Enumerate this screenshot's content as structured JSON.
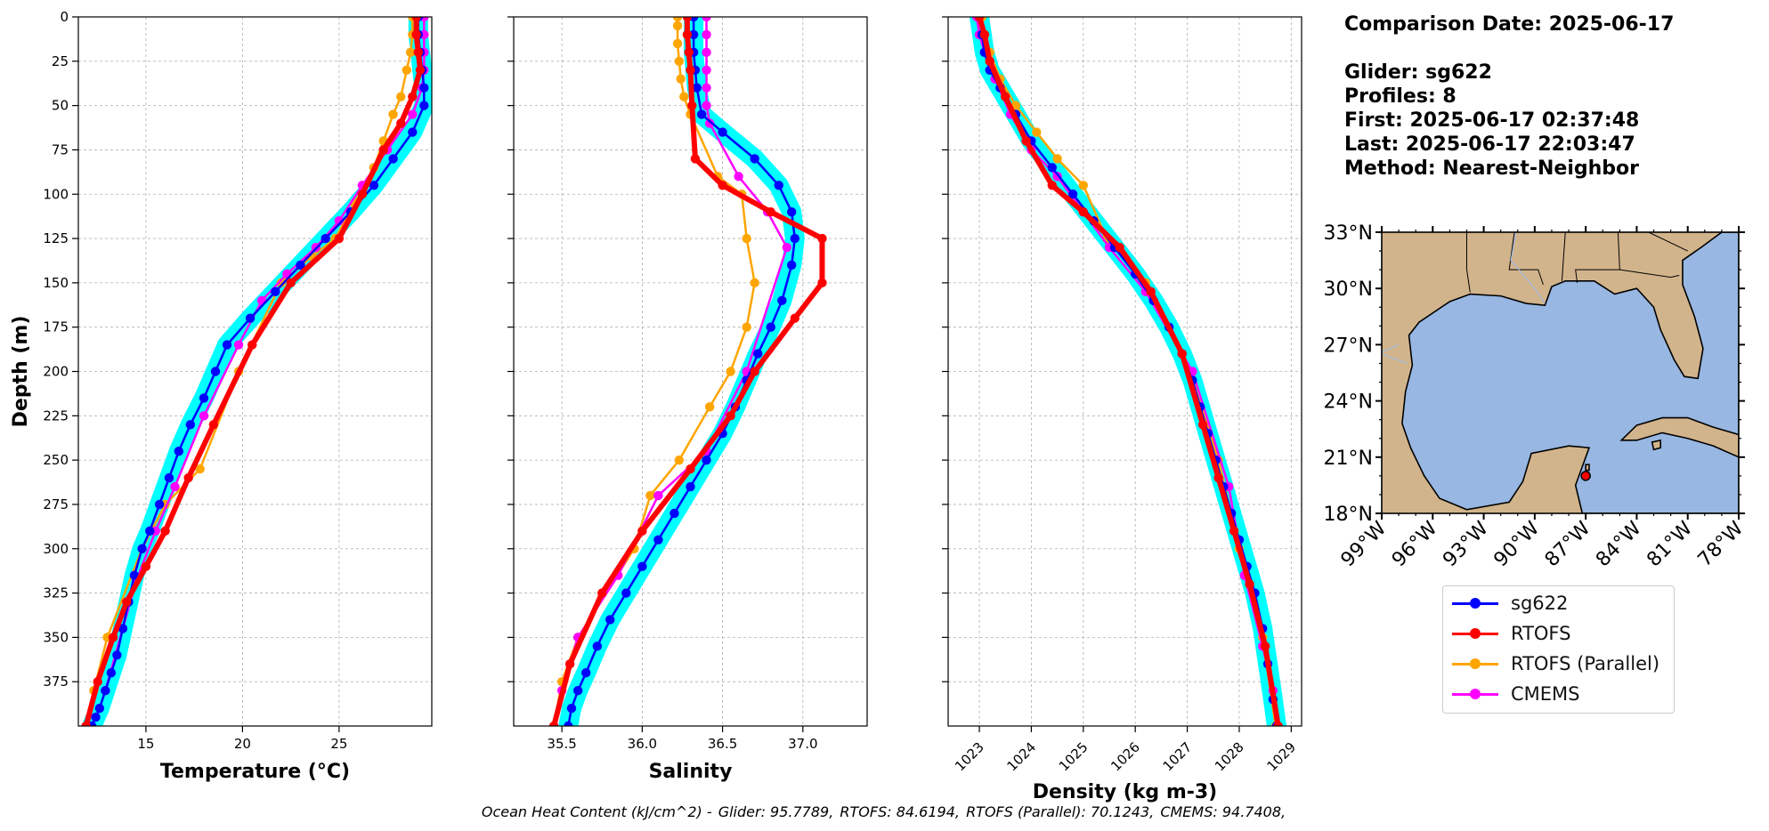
{
  "info": {
    "comparison_date": "Comparison Date: 2025-06-17",
    "glider": "Glider: sg622",
    "profiles": "Profiles: 8",
    "first": "First: 2025-06-17 02:37:48",
    "last": "Last: 2025-06-17 22:03:47",
    "method": "Method: Nearest-Neighbor"
  },
  "footer": {
    "ohc_label": "Ocean Heat Content (kJ/cm^2) -",
    "glider": "Glider: 95.7789,",
    "rtofs": "RTOFS: 84.6194,",
    "rtofs_parallel": "RTOFS (Parallel): 70.1243,",
    "cmems": "CMEMS: 94.7408,"
  },
  "legend": [
    {
      "name": "sg622",
      "color": "#0000ff"
    },
    {
      "name": "RTOFS",
      "color": "#ff0000"
    },
    {
      "name": "RTOFS (Parallel)",
      "color": "#ffa500"
    },
    {
      "name": "CMEMS",
      "color": "#ff00ff"
    }
  ],
  "colors": {
    "glider_band": "#00ffff",
    "land": "#d2b48c",
    "water": "#98b7e2",
    "glider_location": "#ff0000"
  },
  "chart_data": [
    {
      "type": "line",
      "xlabel": "Temperature (°C)",
      "ylabel": "Depth (m)",
      "xlim": [
        11.5,
        29.8
      ],
      "ylim": [
        400,
        0
      ],
      "xticks": [
        15,
        20,
        25
      ],
      "yticks": [
        0,
        25,
        50,
        75,
        100,
        125,
        150,
        175,
        200,
        225,
        250,
        275,
        300,
        325,
        350,
        375
      ],
      "grid": true,
      "series": [
        {
          "name": "sg622",
          "x": [
            29.1,
            29.1,
            29.2,
            29.3,
            29.4,
            29.4,
            28.8,
            27.8,
            26.8,
            25.6,
            24.3,
            23.0,
            21.7,
            20.4,
            19.2,
            18.6,
            18.0,
            17.3,
            16.7,
            16.2,
            15.7,
            15.2,
            14.8,
            14.4,
            14.1,
            13.8,
            13.5,
            13.2,
            12.9,
            12.6,
            12.4,
            12.2
          ],
          "y": [
            0,
            10,
            20,
            30,
            40,
            50,
            65,
            80,
            95,
            110,
            125,
            140,
            155,
            170,
            185,
            200,
            215,
            230,
            245,
            260,
            275,
            290,
            300,
            315,
            330,
            345,
            360,
            370,
            380,
            390,
            395,
            400
          ]
        },
        {
          "name": "RTOFS",
          "x": [
            29.0,
            29.0,
            29.1,
            29.2,
            28.8,
            28.2,
            27.3,
            26.2,
            25.0,
            22.5,
            20.5,
            18.5,
            17.2,
            16.0,
            15.0,
            14.0,
            13.3,
            12.5,
            11.9
          ],
          "y": [
            0,
            10,
            20,
            30,
            45,
            60,
            75,
            100,
            125,
            150,
            185,
            230,
            260,
            290,
            310,
            330,
            350,
            375,
            400
          ]
        },
        {
          "name": "RTOFS (Parallel)",
          "x": [
            28.8,
            28.8,
            28.7,
            28.5,
            28.2,
            27.8,
            27.3,
            26.8,
            25.8,
            24.8,
            23.6,
            22.0,
            19.8,
            17.8,
            16.0,
            14.8,
            13.0,
            12.3,
            11.9
          ],
          "y": [
            0,
            10,
            20,
            30,
            45,
            55,
            70,
            85,
            105,
            125,
            135,
            150,
            200,
            255,
            275,
            300,
            350,
            380,
            400
          ]
        },
        {
          "name": "CMEMS",
          "x": [
            29.4,
            29.4,
            29.4,
            29.4,
            29.3,
            28.8,
            27.5,
            26.2,
            25.0,
            23.8,
            22.3,
            21.0,
            19.8,
            18.0,
            16.5,
            15.5,
            14.5,
            13.8,
            12.9
          ],
          "y": [
            0,
            10,
            20,
            30,
            40,
            55,
            75,
            95,
            115,
            130,
            145,
            160,
            185,
            225,
            265,
            290,
            318,
            345,
            380
          ]
        }
      ]
    },
    {
      "type": "line",
      "xlabel": "Salinity",
      "ylabel": "",
      "xlim": [
        35.2,
        37.4
      ],
      "ylim": [
        400,
        0
      ],
      "xticks": [
        35.5,
        36.0,
        36.5,
        37.0
      ],
      "yticks": [
        0,
        25,
        50,
        75,
        100,
        125,
        150,
        175,
        200,
        225,
        250,
        275,
        300,
        325,
        350,
        375
      ],
      "grid": true,
      "series": [
        {
          "name": "sg622",
          "x": [
            36.32,
            36.32,
            36.32,
            36.33,
            36.34,
            36.37,
            36.5,
            36.7,
            36.85,
            36.93,
            36.95,
            36.93,
            36.87,
            36.8,
            36.72,
            36.65,
            36.58,
            36.5,
            36.4,
            36.3,
            36.2,
            36.1,
            36.0,
            35.9,
            35.8,
            35.72,
            35.65,
            35.6,
            35.56,
            35.54
          ],
          "y": [
            0,
            10,
            20,
            30,
            40,
            55,
            65,
            80,
            95,
            110,
            125,
            140,
            160,
            175,
            190,
            205,
            220,
            235,
            250,
            265,
            280,
            295,
            310,
            325,
            340,
            355,
            370,
            380,
            390,
            400
          ]
        },
        {
          "name": "RTOFS",
          "x": [
            36.28,
            36.28,
            36.29,
            36.3,
            36.31,
            36.33,
            36.5,
            36.8,
            37.12,
            37.12,
            36.95,
            36.7,
            36.55,
            36.3,
            36.0,
            35.75,
            35.55,
            35.45
          ],
          "y": [
            0,
            10,
            20,
            30,
            50,
            80,
            95,
            110,
            125,
            150,
            170,
            200,
            225,
            255,
            290,
            325,
            365,
            400
          ]
        },
        {
          "name": "RTOFS (Parallel)",
          "x": [
            36.22,
            36.22,
            36.22,
            36.23,
            36.24,
            36.26,
            36.3,
            36.47,
            36.62,
            36.65,
            36.7,
            36.65,
            36.55,
            36.42,
            36.23,
            36.05,
            35.95,
            35.6,
            35.5,
            35.45
          ],
          "y": [
            0,
            5,
            15,
            25,
            35,
            45,
            55,
            90,
            100,
            125,
            150,
            175,
            200,
            220,
            250,
            270,
            300,
            350,
            375,
            400
          ]
        },
        {
          "name": "CMEMS",
          "x": [
            36.4,
            36.4,
            36.4,
            36.4,
            36.4,
            36.4,
            36.42,
            36.6,
            36.78,
            36.9,
            36.65,
            36.4,
            36.1,
            35.85,
            35.6,
            35.5
          ],
          "y": [
            0,
            10,
            20,
            30,
            40,
            50,
            60,
            90,
            110,
            130,
            200,
            245,
            270,
            315,
            350,
            380
          ]
        }
      ]
    },
    {
      "type": "line",
      "xlabel": "Density (kg m-3)",
      "ylabel": "",
      "xlim": [
        1022.4,
        1029.2
      ],
      "ylim": [
        400,
        0
      ],
      "xticks": [
        1023,
        1024,
        1025,
        1026,
        1027,
        1028,
        1029
      ],
      "yticks": [
        0,
        25,
        50,
        75,
        100,
        125,
        150,
        175,
        200,
        225,
        250,
        275,
        300,
        325,
        350,
        375
      ],
      "grid": true,
      "series": [
        {
          "name": "sg622",
          "x": [
            1023.0,
            1023.05,
            1023.1,
            1023.2,
            1023.4,
            1023.7,
            1024.0,
            1024.4,
            1024.8,
            1025.2,
            1025.6,
            1026.0,
            1026.35,
            1026.65,
            1026.9,
            1027.1,
            1027.25,
            1027.4,
            1027.55,
            1027.7,
            1027.85,
            1028.0,
            1028.15,
            1028.3,
            1028.45,
            1028.55,
            1028.65,
            1028.72
          ],
          "y": [
            0,
            10,
            20,
            30,
            40,
            55,
            70,
            85,
            100,
            115,
            130,
            145,
            160,
            175,
            190,
            205,
            220,
            235,
            250,
            265,
            280,
            295,
            310,
            325,
            345,
            365,
            385,
            400
          ]
        },
        {
          "name": "RTOFS",
          "x": [
            1023.0,
            1023.1,
            1023.2,
            1023.5,
            1023.9,
            1024.4,
            1025.0,
            1025.7,
            1026.3,
            1026.9,
            1027.3,
            1027.6,
            1027.9,
            1028.2,
            1028.5,
            1028.75
          ],
          "y": [
            0,
            10,
            25,
            45,
            70,
            95,
            110,
            130,
            155,
            190,
            230,
            260,
            290,
            320,
            355,
            400
          ]
        },
        {
          "name": "RTOFS (Parallel)",
          "x": [
            1023.05,
            1023.1,
            1023.2,
            1023.4,
            1023.7,
            1024.1,
            1024.5,
            1025.0,
            1025.45,
            1026.2,
            1027.05,
            1027.6,
            1028.0,
            1028.45,
            1028.7
          ],
          "y": [
            0,
            10,
            20,
            35,
            50,
            65,
            80,
            95,
            125,
            150,
            200,
            250,
            300,
            350,
            400
          ]
        },
        {
          "name": "CMEMS",
          "x": [
            1022.95,
            1023.0,
            1023.1,
            1023.3,
            1023.6,
            1024.0,
            1024.5,
            1025.0,
            1025.5,
            1026.2,
            1027.1,
            1027.8,
            1028.1,
            1028.45,
            1028.65
          ],
          "y": [
            0,
            10,
            20,
            35,
            55,
            75,
            90,
            110,
            130,
            155,
            200,
            265,
            315,
            355,
            380
          ]
        }
      ]
    }
  ],
  "map": {
    "lon_ticks": [
      "99°W",
      "96°W",
      "93°W",
      "90°W",
      "87°W",
      "84°W",
      "81°W",
      "78°W"
    ],
    "lat_ticks": [
      "33°N",
      "30°N",
      "27°N",
      "24°N",
      "21°N",
      "18°N"
    ],
    "lon_range": [
      -99,
      -78
    ],
    "lat_range": [
      18,
      33
    ],
    "glider_location": {
      "lon": -87.0,
      "lat": 20.0
    }
  }
}
